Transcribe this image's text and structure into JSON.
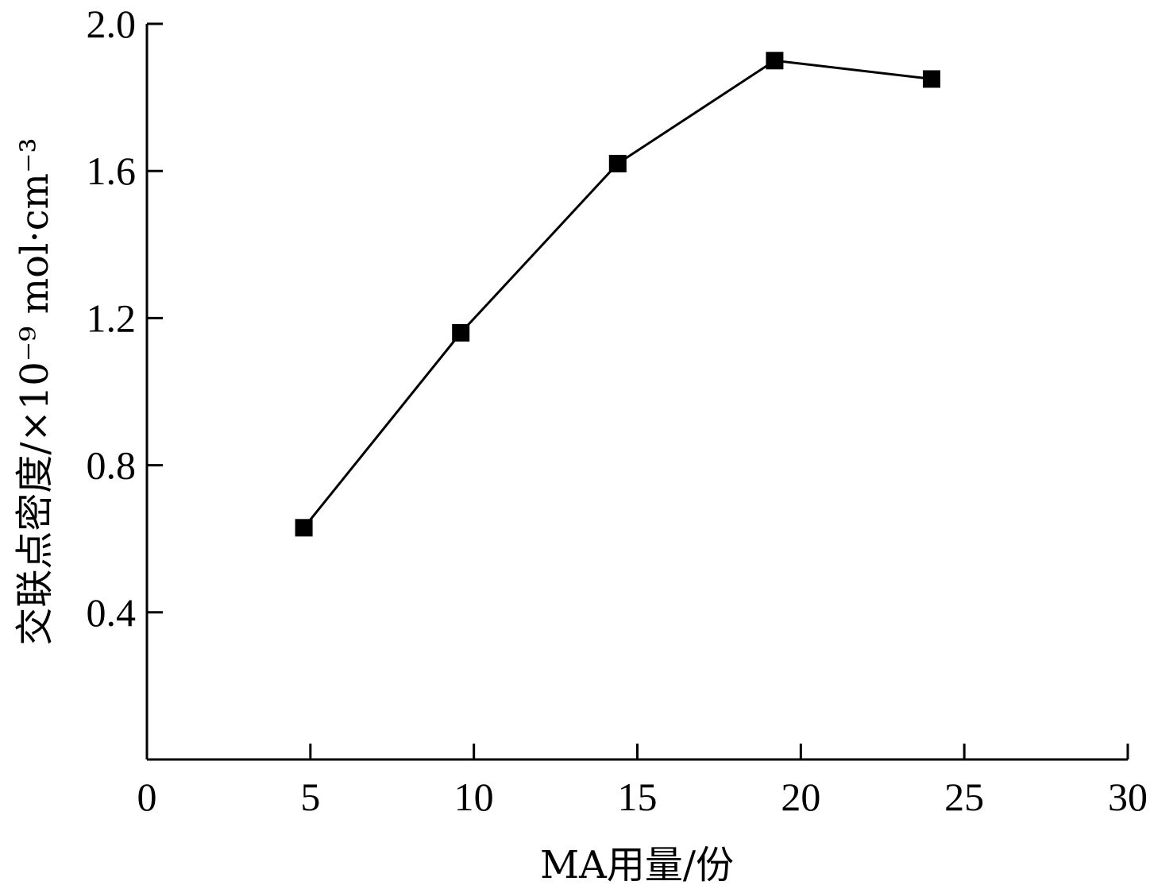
{
  "chart_data": {
    "type": "line",
    "xlabel": "MA用量/份",
    "ylabel": "交联点密度/×10⁻⁹ mol·cm⁻³",
    "xlim": [
      0,
      30
    ],
    "ylim": [
      0,
      2.0
    ],
    "x_ticks": [
      "0",
      "5",
      "10",
      "15",
      "20",
      "25",
      "30"
    ],
    "y_ticks": [
      "0.4",
      "0.8",
      "1.2",
      "1.6",
      "2.0"
    ],
    "grid": false,
    "series": [
      {
        "marker": "square",
        "color": "#000000",
        "x": [
          4.8,
          9.6,
          14.4,
          19.2,
          24.0
        ],
        "y": [
          0.63,
          1.16,
          1.62,
          1.9,
          1.85
        ]
      }
    ]
  }
}
